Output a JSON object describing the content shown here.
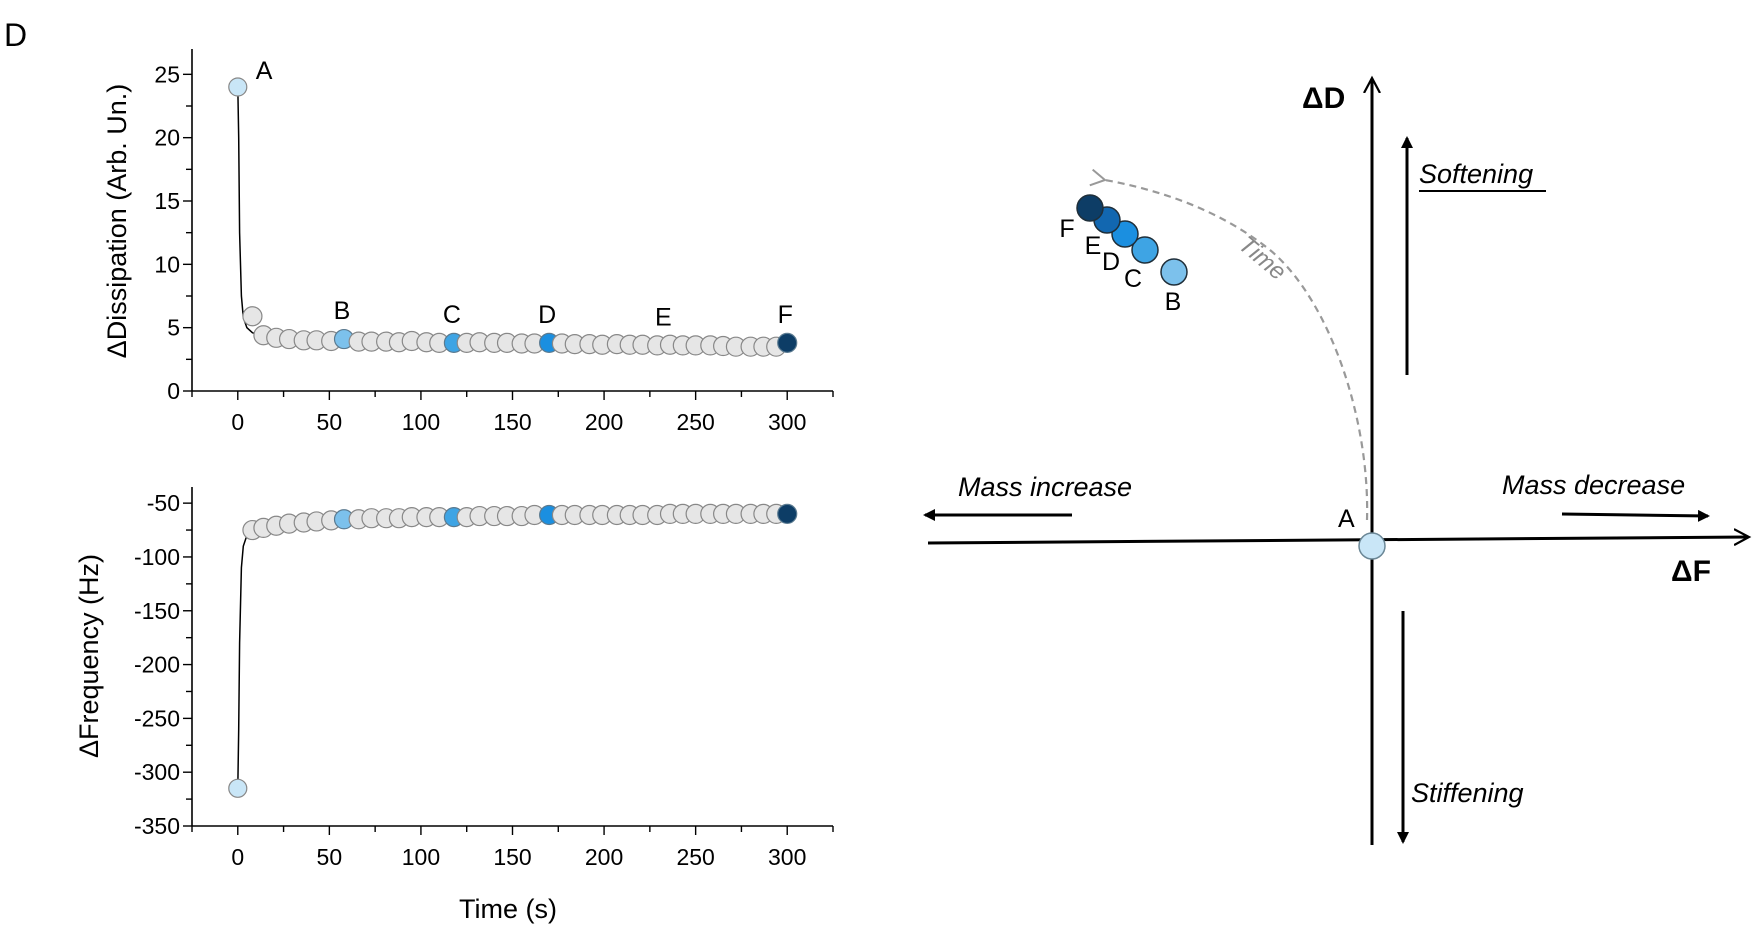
{
  "panel_label": "D",
  "chart_data": [
    {
      "type": "scatter",
      "ylabel": "ΔDissipation (Arb. Un.)",
      "xlabel": "",
      "xlim": [
        -25,
        325
      ],
      "ylim": [
        0,
        27
      ],
      "xticks": [
        0,
        50,
        100,
        150,
        200,
        250,
        300
      ],
      "yticks": [
        0,
        5,
        10,
        15,
        20,
        25
      ],
      "line_x": [
        0,
        0.5,
        1,
        2,
        3,
        5,
        8,
        10,
        13,
        16,
        20
      ],
      "line_y": [
        24,
        20,
        12.5,
        7.5,
        5.8,
        5.0,
        4.6,
        4.5,
        4.4,
        4.3,
        4.2
      ],
      "x": [
        0,
        8,
        14,
        21,
        28,
        36,
        43,
        51,
        58,
        66,
        73,
        81,
        88,
        95,
        103,
        110,
        118,
        125,
        132,
        140,
        147,
        155,
        162,
        170,
        177,
        184,
        192,
        199,
        207,
        214,
        221,
        229,
        236,
        243,
        250,
        258,
        265,
        272,
        280,
        287,
        294,
        300
      ],
      "y": [
        24,
        5.9,
        4.4,
        4.2,
        4.1,
        4.0,
        4.0,
        3.95,
        4.1,
        3.9,
        3.9,
        3.9,
        3.85,
        3.95,
        3.85,
        3.8,
        3.8,
        3.8,
        3.85,
        3.8,
        3.8,
        3.75,
        3.75,
        3.8,
        3.75,
        3.7,
        3.7,
        3.65,
        3.7,
        3.65,
        3.65,
        3.6,
        3.65,
        3.6,
        3.6,
        3.6,
        3.55,
        3.5,
        3.5,
        3.5,
        3.5,
        3.8
      ],
      "highlighted": [
        {
          "label": "A",
          "x": 0,
          "y": 24,
          "color": "#c9e6f7"
        },
        {
          "label": "B",
          "x": 58,
          "y": 4.1,
          "color": "#7cc1ec"
        },
        {
          "label": "C",
          "x": 118,
          "y": 3.8,
          "color": "#3ea4e4"
        },
        {
          "label": "D",
          "x": 170,
          "y": 3.8,
          "color": "#1b8fe0"
        },
        {
          "label": "E",
          "x": 234,
          "y": 3.6,
          "color": "#1267b0"
        },
        {
          "label": "F",
          "x": 300,
          "y": 3.8,
          "color": "#0d3d66"
        }
      ]
    },
    {
      "type": "scatter",
      "ylabel": "ΔFrequency (Hz)",
      "xlabel": "Time (s)",
      "xlim": [
        -25,
        325
      ],
      "ylim": [
        -350,
        -35
      ],
      "xticks": [
        0,
        50,
        100,
        150,
        200,
        250,
        300
      ],
      "yticks": [
        -50,
        -100,
        -150,
        -200,
        -250,
        -300,
        -350
      ],
      "line_x": [
        0,
        0.5,
        1,
        2,
        3,
        5,
        8,
        10,
        13
      ],
      "line_y": [
        -315,
        -260,
        -180,
        -110,
        -90,
        -80,
        -76,
        -75,
        -74
      ],
      "x": [
        0,
        8,
        14,
        21,
        28,
        36,
        43,
        51,
        58,
        66,
        73,
        81,
        88,
        95,
        103,
        110,
        118,
        125,
        132,
        140,
        147,
        155,
        162,
        170,
        177,
        184,
        192,
        199,
        207,
        214,
        221,
        229,
        236,
        243,
        250,
        258,
        265,
        272,
        280,
        287,
        294,
        300
      ],
      "y": [
        -315,
        -75,
        -73,
        -71,
        -69,
        -68,
        -67,
        -66,
        -65,
        -65,
        -64,
        -64,
        -64,
        -63,
        -63,
        -63,
        -63,
        -63,
        -62,
        -62,
        -62,
        -62,
        -61,
        -61,
        -61,
        -61,
        -61,
        -61,
        -61,
        -61,
        -61,
        -61,
        -60,
        -60,
        -60,
        -60,
        -60,
        -60,
        -60,
        -60,
        -60,
        -60
      ],
      "highlighted": [
        {
          "label": "A",
          "x": 0,
          "y": -315,
          "color": "#c9e6f7"
        },
        {
          "label": "B",
          "x": 58,
          "y": -65,
          "color": "#7cc1ec"
        },
        {
          "label": "C",
          "x": 118,
          "y": -63,
          "color": "#3ea4e4"
        },
        {
          "label": "D",
          "x": 170,
          "y": -61,
          "color": "#1b8fe0"
        },
        {
          "label": "E",
          "x": 234,
          "y": -60,
          "color": "#1267b0"
        },
        {
          "label": "F",
          "x": 300,
          "y": -60,
          "color": "#0d3d66"
        }
      ]
    }
  ],
  "schematic": {
    "x_axis_title": "ΔF",
    "y_axis_title": "ΔD",
    "softening": "Softening",
    "stiffening": "Stiffening",
    "mass_increase": "Mass increase",
    "mass_decrease": "Mass decrease",
    "time_label": "Time",
    "origin_label": "A",
    "points": [
      {
        "label": "B",
        "color": "#7cc1ec"
      },
      {
        "label": "C",
        "color": "#3ea4e4"
      },
      {
        "label": "D",
        "color": "#1b8fe0"
      },
      {
        "label": "E",
        "color": "#1267b0"
      },
      {
        "label": "F",
        "color": "#0d3d66"
      }
    ]
  },
  "colors": {
    "point_fill": "#e6e6e6",
    "point_stroke": "#888888",
    "arrow_gray": "#999999"
  }
}
